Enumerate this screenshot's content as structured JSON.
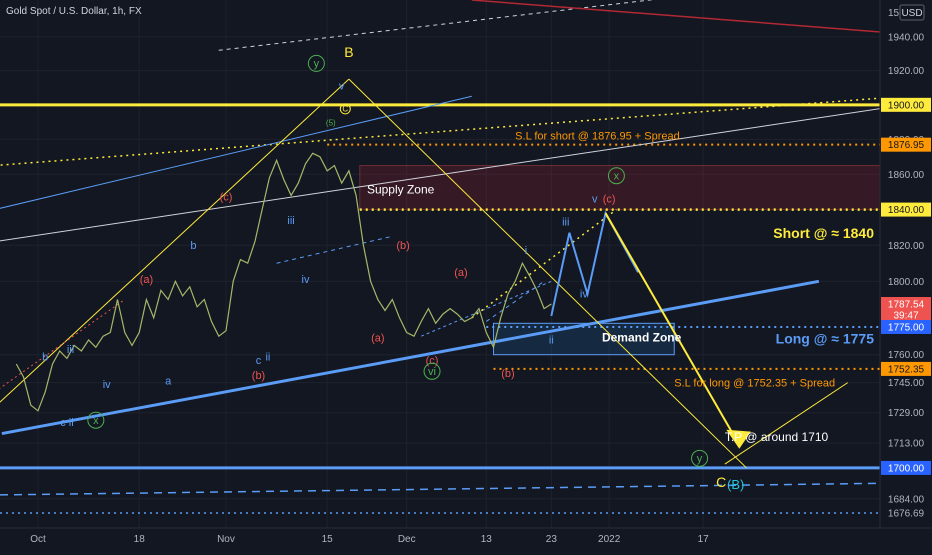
{
  "header": {
    "symbol": "Gold Spot / U.S. Dollar, 1h, FX",
    "currency": "USD",
    "currency_prefix": "15"
  },
  "chart_data": {
    "type": "line",
    "title": "Gold Spot / U.S. Dollar, 1h, FX",
    "ylim": [
      1669,
      1962
    ],
    "y_scale": "log",
    "x_ticks": [
      {
        "label": "Oct",
        "x": 0
      },
      {
        "label": "18",
        "x": 14
      },
      {
        "label": "Nov",
        "x": 26
      },
      {
        "label": "15",
        "x": 40
      },
      {
        "label": "Dec",
        "x": 51
      },
      {
        "label": "13",
        "x": 62
      },
      {
        "label": "23",
        "x": 71
      },
      {
        "label": "2022",
        "x": 79
      },
      {
        "label": "17",
        "x": 92
      }
    ],
    "y_ticks": [
      1940,
      1920,
      1880,
      1860,
      1820,
      1800,
      1760,
      1745,
      1729,
      1713,
      1684
    ],
    "price_badges": [
      {
        "label": "1900.00",
        "value": 1900,
        "style": "yellow"
      },
      {
        "label": "1876.95",
        "value": 1876.95,
        "style": "orange"
      },
      {
        "label": "1840.00",
        "value": 1840,
        "style": "yellow"
      },
      {
        "label": "1787.54",
        "value": 1787.54,
        "style": "red"
      },
      {
        "label": "39:47",
        "value": 1781.5,
        "style": "red"
      },
      {
        "label": "1775.00",
        "value": 1775,
        "style": "blue"
      },
      {
        "label": "1752.35",
        "value": 1752.35,
        "style": "orange"
      },
      {
        "label": "1700.00",
        "value": 1700,
        "style": "blue"
      },
      {
        "label": "1676.69",
        "value": 1676.69,
        "style": "gray"
      }
    ],
    "price_path": [
      [
        -3,
        1755
      ],
      [
        -2,
        1748
      ],
      [
        -1,
        1733
      ],
      [
        0,
        1730
      ],
      [
        1,
        1740
      ],
      [
        2,
        1755
      ],
      [
        3,
        1762
      ],
      [
        4,
        1758
      ],
      [
        5,
        1765
      ],
      [
        6,
        1762
      ],
      [
        7,
        1768
      ],
      [
        8,
        1764
      ],
      [
        9,
        1770
      ],
      [
        10,
        1772
      ],
      [
        11,
        1790
      ],
      [
        12,
        1772
      ],
      [
        13,
        1765
      ],
      [
        14,
        1772
      ],
      [
        15,
        1790
      ],
      [
        16,
        1780
      ],
      [
        17,
        1795
      ],
      [
        18,
        1790
      ],
      [
        19,
        1800
      ],
      [
        20,
        1792
      ],
      [
        21,
        1797
      ],
      [
        22,
        1786
      ],
      [
        23,
        1790
      ],
      [
        24,
        1778
      ],
      [
        25,
        1770
      ],
      [
        26,
        1773
      ],
      [
        27,
        1800
      ],
      [
        28,
        1812
      ],
      [
        29,
        1810
      ],
      [
        30,
        1822
      ],
      [
        31,
        1840
      ],
      [
        32,
        1858
      ],
      [
        33,
        1868
      ],
      [
        34,
        1857
      ],
      [
        35,
        1848
      ],
      [
        36,
        1855
      ],
      [
        37,
        1866
      ],
      [
        38,
        1872
      ],
      [
        39,
        1870
      ],
      [
        40,
        1862
      ],
      [
        41,
        1865
      ],
      [
        42,
        1855
      ],
      [
        43,
        1862
      ],
      [
        44,
        1848
      ],
      [
        45,
        1820
      ],
      [
        46,
        1800
      ],
      [
        47,
        1790
      ],
      [
        48,
        1784
      ],
      [
        49,
        1790
      ],
      [
        50,
        1780
      ],
      [
        51,
        1772
      ],
      [
        52,
        1770
      ],
      [
        53,
        1778
      ],
      [
        54,
        1785
      ],
      [
        55,
        1777
      ],
      [
        56,
        1782
      ],
      [
        57,
        1785
      ],
      [
        58,
        1782
      ],
      [
        59,
        1778
      ],
      [
        60,
        1780
      ],
      [
        61,
        1785
      ],
      [
        62,
        1772
      ],
      [
        63,
        1764
      ],
      [
        64,
        1780
      ],
      [
        65,
        1793
      ],
      [
        66,
        1800
      ],
      [
        67,
        1810
      ],
      [
        68,
        1803
      ],
      [
        69,
        1795
      ],
      [
        70,
        1785
      ],
      [
        71,
        1787.54
      ]
    ],
    "levels": [
      {
        "name": "resistance-1900",
        "value": 1900,
        "color": "#ffeb3b"
      },
      {
        "name": "sl-short-1876",
        "value": 1876.95,
        "color": "#ff9800"
      },
      {
        "name": "short-1840",
        "value": 1840,
        "color": "#ffeb3b"
      },
      {
        "name": "long-1775",
        "value": 1775,
        "color": "#5b9cf6"
      },
      {
        "name": "sl-long-1752",
        "value": 1752.35,
        "color": "#ff9800"
      },
      {
        "name": "support-1700",
        "value": 1700,
        "color": "#5b9cf6"
      },
      {
        "name": "low-1676",
        "value": 1676.69,
        "color": "#5b9cf6"
      }
    ],
    "annotations": [
      {
        "text": "S.L for short @ 1876.95 + Spread",
        "x": 66,
        "y": 1880,
        "color": "#ff9800",
        "size": 11
      },
      {
        "text": "Supply Zone",
        "x": 45.5,
        "y": 1849,
        "color": "#ffffff",
        "size": 12
      },
      {
        "text": "Short @ ≈ 1840",
        "x": 106,
        "y": 1824,
        "color": "#ffeb3b",
        "size": 14,
        "bold": true,
        "anchor": "end"
      },
      {
        "text": "Demand Zone",
        "x": 78,
        "y": 1767,
        "color": "#ffffff",
        "size": 12,
        "bold": true
      },
      {
        "text": "Long @ ≈ 1775",
        "x": 106,
        "y": 1766,
        "color": "#5b9cf6",
        "size": 14,
        "bold": true,
        "anchor": "end"
      },
      {
        "text": "S.L for long @ 1752.35 + Spread",
        "x": 88,
        "y": 1743,
        "color": "#ff9800",
        "size": 11
      },
      {
        "text": "T.P @ around 1710",
        "x": 95,
        "y": 1714,
        "color": "#ffffff",
        "size": 12
      }
    ],
    "wave_labels": [
      {
        "text": "B",
        "x": 43,
        "y": 1928,
        "color": "#ffeb3b",
        "size": 14
      },
      {
        "text": "y",
        "x": 38.5,
        "y": 1922,
        "color": "#4caf50",
        "circle": true
      },
      {
        "text": "v",
        "x": 42,
        "y": 1909,
        "color": "#5b9cf6"
      },
      {
        "text": "C",
        "x": 42.5,
        "y": 1896,
        "color": "#ffeb3b",
        "circle": true,
        "small": true
      },
      {
        "text": "(5)",
        "x": 40.5,
        "y": 1888,
        "color": "#4caf50",
        "small": true
      },
      {
        "text": "(c)",
        "x": 26,
        "y": 1845,
        "color": "#ef5350"
      },
      {
        "text": "iii",
        "x": 35,
        "y": 1832,
        "color": "#5b9cf6"
      },
      {
        "text": "iv",
        "x": 37,
        "y": 1799,
        "color": "#5b9cf6"
      },
      {
        "text": "b",
        "x": 21.5,
        "y": 1818,
        "color": "#5b9cf6"
      },
      {
        "text": "(a)",
        "x": 15,
        "y": 1799,
        "color": "#ef5350"
      },
      {
        "text": "iii",
        "x": 4.5,
        "y": 1761,
        "color": "#5b9cf6"
      },
      {
        "text": "b",
        "x": 1,
        "y": 1757,
        "color": "#5b9cf6"
      },
      {
        "text": "iv",
        "x": 9.5,
        "y": 1742,
        "color": "#5b9cf6"
      },
      {
        "text": "a",
        "x": 18,
        "y": 1744,
        "color": "#5b9cf6"
      },
      {
        "text": "c",
        "x": 30.5,
        "y": 1755,
        "color": "#5b9cf6"
      },
      {
        "text": "ii",
        "x": 31.8,
        "y": 1757,
        "color": "#5b9cf6"
      },
      {
        "text": "(b)",
        "x": 30.5,
        "y": 1747,
        "color": "#ef5350"
      },
      {
        "text": "c ii",
        "x": 4,
        "y": 1722,
        "color": "#5b9cf6"
      },
      {
        "text": "x",
        "x": 8,
        "y": 1723,
        "color": "#4caf50",
        "circle": true
      },
      {
        "text": "(b)",
        "x": 50.5,
        "y": 1818,
        "color": "#ef5350"
      },
      {
        "text": "(a)",
        "x": 58.5,
        "y": 1803,
        "color": "#ef5350"
      },
      {
        "text": "(a)",
        "x": 47,
        "y": 1767,
        "color": "#ef5350"
      },
      {
        "text": "(c)",
        "x": 54.5,
        "y": 1755,
        "color": "#ef5350"
      },
      {
        "text": "vi",
        "x": 54.5,
        "y": 1749,
        "color": "#4caf50",
        "circle": true
      },
      {
        "text": "(b)",
        "x": 65,
        "y": 1748,
        "color": "#ef5350"
      },
      {
        "text": "i",
        "x": 67.5,
        "y": 1815,
        "color": "#5b9cf6"
      },
      {
        "text": "ii",
        "x": 71,
        "y": 1766,
        "color": "#5b9cf6"
      },
      {
        "text": "iii",
        "x": 73,
        "y": 1831,
        "color": "#5b9cf6"
      },
      {
        "text": "iv",
        "x": 75.5,
        "y": 1791,
        "color": "#5b9cf6"
      },
      {
        "text": "v",
        "x": 77,
        "y": 1844,
        "color": "#5b9cf6"
      },
      {
        "text": "(c)",
        "x": 79,
        "y": 1844,
        "color": "#ef5350"
      },
      {
        "text": "x",
        "x": 80,
        "y": 1857,
        "color": "#4caf50",
        "circle": true
      },
      {
        "text": "y",
        "x": 91.5,
        "y": 1703,
        "color": "#4caf50",
        "circle": true
      },
      {
        "text": "C",
        "x": 94.5,
        "y": 1690,
        "color": "#ffeb3b",
        "size": 14
      },
      {
        "text": "(B)",
        "x": 96.5,
        "y": 1689,
        "color": "#26c6da",
        "size": 13
      }
    ]
  }
}
